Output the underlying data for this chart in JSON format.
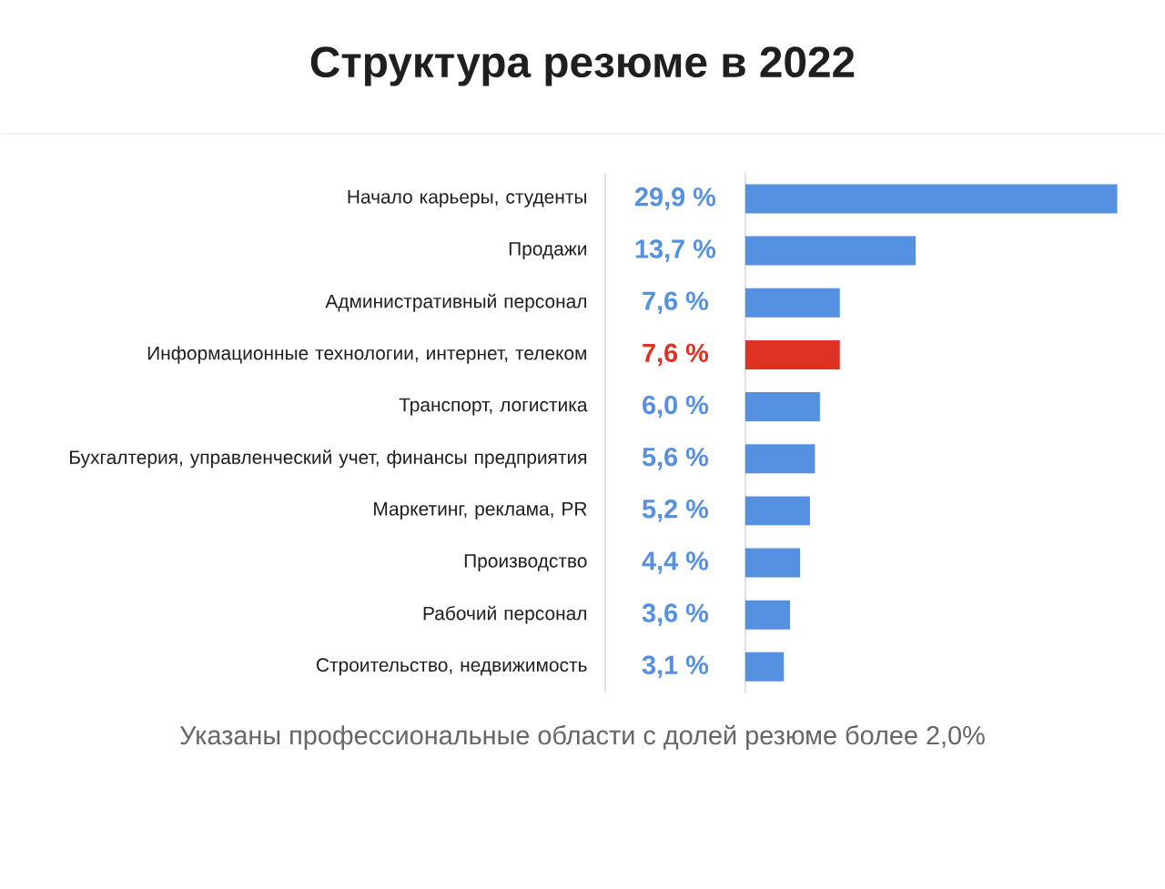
{
  "chart_data": {
    "type": "bar",
    "orientation": "horizontal",
    "title": "Структура резюме в 2022",
    "categories": [
      "Начало карьеры, студенты",
      "Продажи",
      "Административный персонал",
      "Информационные технологии, интернет, телеком",
      "Транспорт, логистика",
      "Бухгалтерия, управленческий учет, финансы предприятия",
      "Маркетинг, реклама, PR",
      "Производство",
      "Рабочий персонал",
      "Строительство, недвижимость"
    ],
    "values": [
      29.9,
      13.7,
      7.6,
      7.6,
      6.0,
      5.6,
      5.2,
      4.4,
      3.6,
      3.1
    ],
    "colors": [
      "#5591e0",
      "#5591e0",
      "#5591e0",
      "#dd3224",
      "#5591e0",
      "#5591e0",
      "#5591e0",
      "#5591e0",
      "#5591e0",
      "#5591e0"
    ],
    "value_labels": [
      "29,9 %",
      "13,7 %",
      "7,6 %",
      "7,6 %",
      "6,0 %",
      "5,6 %",
      "5,2 %",
      "4,4 %",
      "3,6 %",
      "3,1 %"
    ],
    "annotations": [
      "Указаны профессиональные области с долей резюме более 2,0%"
    ]
  }
}
